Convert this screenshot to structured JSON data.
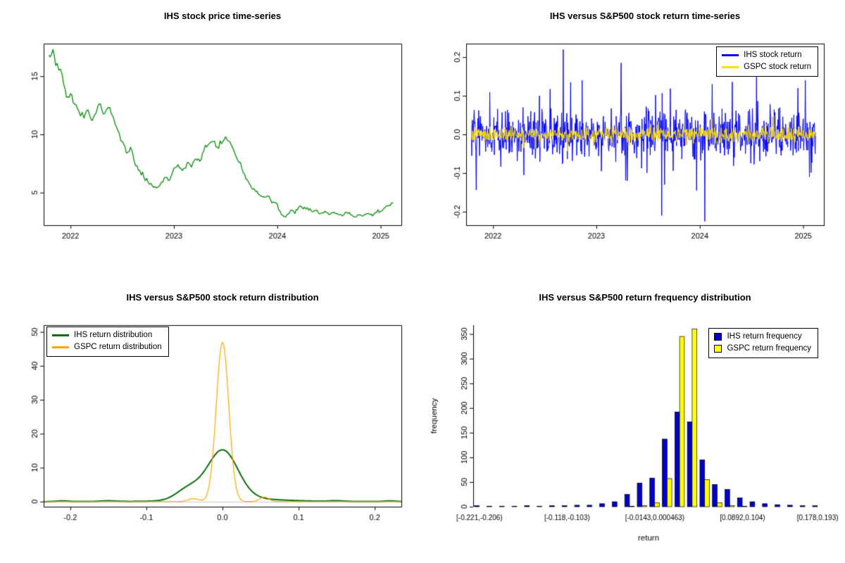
{
  "page": {
    "background": "#ffffff"
  },
  "chart_data": [
    {
      "id": "price-timeseries",
      "type": "line",
      "title": "IHS stock price time-series",
      "xlim": [
        2021.74,
        2025.2
      ],
      "ylim": [
        2.2,
        17.8
      ],
      "xticks": [
        2022,
        2023,
        2024,
        2025
      ],
      "xtick_labels": [
        "2022",
        "2023",
        "2024",
        "2025"
      ],
      "yticks": [
        5,
        10,
        15
      ],
      "ytick_labels": [
        "5",
        "10",
        "15"
      ],
      "box": true,
      "series": [
        {
          "color": "#149414",
          "width": 1.4,
          "seed": 11,
          "jitter": 1.2,
          "points": [
            [
              2021.79,
              16.8
            ],
            [
              2021.83,
              17.3
            ],
            [
              2021.87,
              16.1
            ],
            [
              2021.92,
              15.1
            ],
            [
              2021.96,
              13.2
            ],
            [
              2022.0,
              13.5
            ],
            [
              2022.04,
              12.6
            ],
            [
              2022.08,
              12.0
            ],
            [
              2022.13,
              11.4
            ],
            [
              2022.17,
              12.1
            ],
            [
              2022.21,
              11.2
            ],
            [
              2022.25,
              11.9
            ],
            [
              2022.29,
              12.6
            ],
            [
              2022.33,
              11.8
            ],
            [
              2022.38,
              12.3
            ],
            [
              2022.42,
              11.3
            ],
            [
              2022.46,
              10.3
            ],
            [
              2022.5,
              9.4
            ],
            [
              2022.54,
              8.4
            ],
            [
              2022.58,
              8.9
            ],
            [
              2022.63,
              7.3
            ],
            [
              2022.67,
              6.9
            ],
            [
              2022.71,
              6.3
            ],
            [
              2022.75,
              5.9
            ],
            [
              2022.79,
              5.6
            ],
            [
              2022.83,
              5.4
            ],
            [
              2022.88,
              5.9
            ],
            [
              2022.92,
              6.3
            ],
            [
              2022.96,
              6.1
            ],
            [
              2023.0,
              7.1
            ],
            [
              2023.04,
              7.4
            ],
            [
              2023.08,
              6.9
            ],
            [
              2023.13,
              7.6
            ],
            [
              2023.17,
              7.2
            ],
            [
              2023.21,
              7.9
            ],
            [
              2023.25,
              7.7
            ],
            [
              2023.29,
              8.6
            ],
            [
              2023.33,
              9.1
            ],
            [
              2023.38,
              9.4
            ],
            [
              2023.42,
              8.9
            ],
            [
              2023.46,
              9.2
            ],
            [
              2023.5,
              9.8
            ],
            [
              2023.54,
              9.4
            ],
            [
              2023.58,
              8.6
            ],
            [
              2023.63,
              7.6
            ],
            [
              2023.67,
              6.7
            ],
            [
              2023.71,
              6.1
            ],
            [
              2023.75,
              5.4
            ],
            [
              2023.79,
              5.1
            ],
            [
              2023.83,
              4.8
            ],
            [
              2023.88,
              4.6
            ],
            [
              2023.92,
              4.7
            ],
            [
              2023.96,
              4.2
            ],
            [
              2024.0,
              4.0
            ],
            [
              2024.04,
              3.1
            ],
            [
              2024.08,
              2.9
            ],
            [
              2024.13,
              3.5
            ],
            [
              2024.17,
              3.2
            ],
            [
              2024.21,
              3.8
            ],
            [
              2024.25,
              3.6
            ],
            [
              2024.29,
              3.7
            ],
            [
              2024.33,
              3.4
            ],
            [
              2024.38,
              3.5
            ],
            [
              2024.42,
              3.2
            ],
            [
              2024.46,
              3.4
            ],
            [
              2024.5,
              3.1
            ],
            [
              2024.54,
              3.3
            ],
            [
              2024.58,
              3.2
            ],
            [
              2024.63,
              3.0
            ],
            [
              2024.67,
              3.3
            ],
            [
              2024.71,
              3.1
            ],
            [
              2024.75,
              2.9
            ],
            [
              2024.79,
              3.1
            ],
            [
              2024.83,
              3.0
            ],
            [
              2024.88,
              3.2
            ],
            [
              2024.92,
              3.0
            ],
            [
              2024.96,
              3.3
            ],
            [
              2025.0,
              3.4
            ],
            [
              2025.04,
              3.7
            ],
            [
              2025.08,
              3.9
            ],
            [
              2025.12,
              4.1
            ]
          ]
        }
      ]
    },
    {
      "id": "return-timeseries",
      "type": "returns",
      "title": "IHS versus S&P500 stock return time-series",
      "xlim": [
        2021.74,
        2025.2
      ],
      "ylim": [
        -0.235,
        0.235
      ],
      "xticks": [
        2022,
        2023,
        2024,
        2025
      ],
      "xtick_labels": [
        "2022",
        "2023",
        "2024",
        "2025"
      ],
      "yticks": [
        -0.2,
        -0.1,
        0,
        0.1,
        0.2
      ],
      "ytick_labels": [
        "-0.2",
        "-0.1",
        "0.0",
        "0.1",
        "0.2"
      ],
      "box": true,
      "legend": {
        "position": "topright"
      },
      "series": [
        {
          "name": "IHS stock return",
          "color": "#0000FF",
          "width": 1,
          "gen": {
            "seed": 42,
            "n": 840,
            "x0": 2021.79,
            "x1": 2025.12,
            "sigma": 0.03,
            "tail_prob": 0.08,
            "tail_scale": 2.1
          },
          "spikes": [
            [
              2022.3,
              -0.105
            ],
            [
              2022.45,
              0.1
            ],
            [
              2022.68,
              0.22
            ],
            [
              2022.75,
              0.135
            ],
            [
              2022.86,
              0.14
            ],
            [
              2023.05,
              -0.095
            ],
            [
              2023.24,
              0.185
            ],
            [
              2023.3,
              -0.12
            ],
            [
              2023.63,
              -0.21
            ],
            [
              2023.66,
              -0.13
            ],
            [
              2023.97,
              -0.145
            ],
            [
              2024.05,
              -0.225
            ],
            [
              2024.12,
              0.13
            ],
            [
              2024.55,
              0.15
            ],
            [
              2024.95,
              0.12
            ],
            [
              2025.02,
              0.14
            ],
            [
              2025.06,
              -0.11
            ]
          ]
        },
        {
          "name": "GSPC stock return",
          "color": "#FFE100",
          "width": 1,
          "gen": {
            "seed": 7,
            "n": 840,
            "x0": 2021.79,
            "x1": 2025.12,
            "sigma": 0.0095,
            "tail_prob": 0.05,
            "tail_scale": 1.8
          },
          "spikes": [
            [
              2022.3,
              -0.035
            ],
            [
              2024.53,
              0.03
            ]
          ]
        }
      ]
    },
    {
      "id": "return-distribution",
      "type": "density",
      "title": "IHS versus S&P500 stock return distribution",
      "xlim": [
        -0.235,
        0.235
      ],
      "ylim": [
        -1.5,
        52
      ],
      "xticks": [
        -0.2,
        -0.1,
        0,
        0.1,
        0.2
      ],
      "xtick_labels": [
        "-0.2",
        "-0.1",
        "0.0",
        "0.1",
        "0.2"
      ],
      "yticks": [
        0,
        10,
        20,
        30,
        40,
        50
      ],
      "ytick_labels": [
        "0",
        "10",
        "20",
        "30",
        "40",
        "50"
      ],
      "box": true,
      "baseline": true,
      "legend": {
        "position": "topleft"
      },
      "series": [
        {
          "name": "IHS return distribution",
          "color": "#0a6e0a",
          "width": 2,
          "components": [
            {
              "mu": 0.0,
              "sigma": 0.02,
              "w": 0.72
            },
            {
              "mu": -0.045,
              "sigma": 0.016,
              "w": 0.13
            },
            {
              "mu": 0.02,
              "sigma": 0.05,
              "w": 0.1
            },
            {
              "mu": 0.0,
              "sigma": 0.12,
              "w": 0.03
            },
            {
              "mu": 0.15,
              "sigma": 0.01,
              "w": 0.005
            },
            {
              "mu": 0.22,
              "sigma": 0.008,
              "w": 0.004
            },
            {
              "mu": -0.15,
              "sigma": 0.01,
              "w": 0.005
            },
            {
              "mu": -0.21,
              "sigma": 0.008,
              "w": 0.004
            }
          ]
        },
        {
          "name": "GSPC return distribution",
          "color": "#FFA500",
          "width": 1.2,
          "components": [
            {
              "mu": 0.0,
              "sigma": 0.0082,
              "w": 0.965
            },
            {
              "mu": 0.055,
              "sigma": 0.006,
              "w": 0.02
            },
            {
              "mu": -0.038,
              "sigma": 0.007,
              "w": 0.015
            }
          ]
        }
      ]
    },
    {
      "id": "return-frequency",
      "type": "bar",
      "title": "IHS versus S&P500 return frequency distribution",
      "xlabel": "return",
      "ylabel": "frequency",
      "ylim": [
        0,
        368
      ],
      "yticks": [
        0,
        50,
        100,
        150,
        200,
        250,
        300,
        350
      ],
      "ytick_labels": [
        "0",
        "50",
        "100",
        "150",
        "200",
        "250",
        "300",
        "350"
      ],
      "n_bins": 28,
      "xtick_positions": [
        0,
        7,
        14,
        21,
        27
      ],
      "xtick_labels": [
        "[-0.221,-0.206)",
        "[-0.118,-0.103)",
        "[-0.0143,0.000463)",
        "[0.0892,0.104)",
        "[0.178,0.193)"
      ],
      "legend": {
        "position": "topright"
      },
      "series": [
        {
          "name": "IHS return frequency",
          "color": "#0000CD",
          "values": [
            2,
            1,
            1,
            1,
            2,
            1,
            2,
            2,
            3,
            3,
            6,
            10,
            25,
            48,
            58,
            137,
            192,
            172,
            95,
            45,
            35,
            18,
            10,
            6,
            4,
            3,
            2,
            2
          ]
        },
        {
          "name": "GSPC return frequency",
          "color": "#FFFF00",
          "values": [
            0,
            0,
            0,
            0,
            0,
            0,
            0,
            0,
            0,
            0,
            0,
            0,
            1,
            2,
            8,
            57,
            345,
            360,
            55,
            8,
            2,
            1,
            0,
            0,
            0,
            0,
            0,
            0
          ]
        }
      ]
    }
  ]
}
